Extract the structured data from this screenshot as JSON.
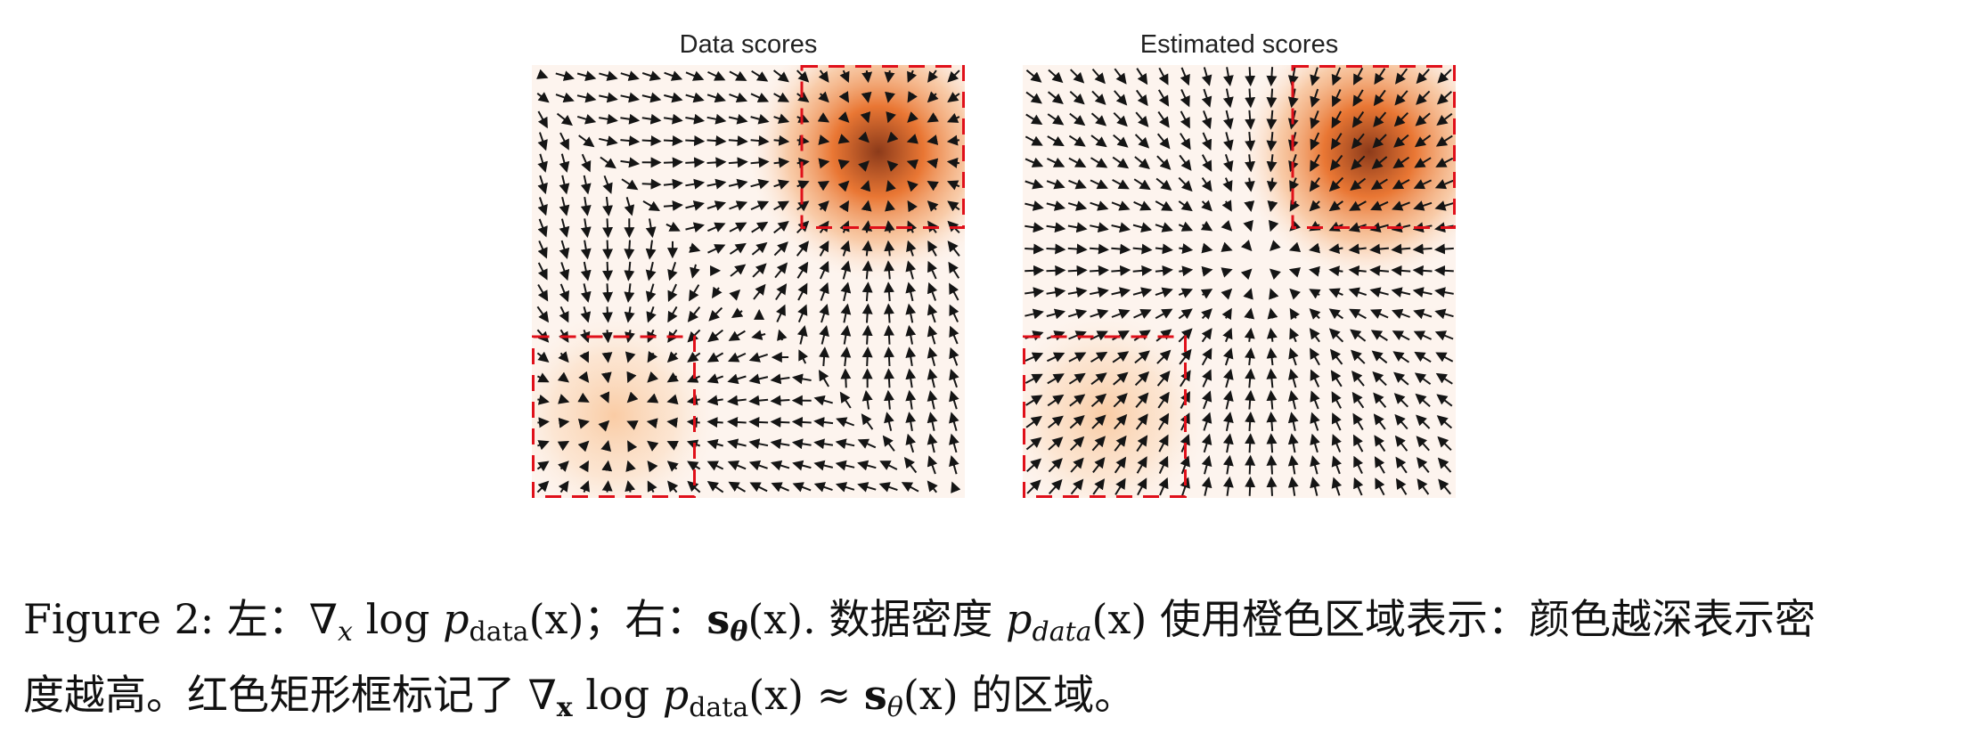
{
  "figure": {
    "panels": [
      {
        "title": "Data scores",
        "mode": "data"
      },
      {
        "title": "Estimated scores",
        "mode": "estimated"
      }
    ],
    "colors": {
      "density": "#e8702a",
      "density_dark": "#8b3a1a",
      "box": "#e0101a",
      "arrow": "#151515"
    }
  },
  "caption": {
    "line1_prefix": "Figure 2: 左：∇",
    "line1_sub_x": "x",
    "line1_log": " log ",
    "line1_p": "p",
    "line1_sub_data": "data",
    "line1_mid": "(x)；右：",
    "line1_s": "s",
    "line1_theta": "θ",
    "line1_rest1": "(x). 数据密度 ",
    "line1_p2": "p",
    "line1_sub_data2": "data",
    "line1_rest2": "(x) 使用橙色区域表示：颜色越深表示密",
    "line2_prefix": "度越高。红色矩形框标记了 ∇",
    "line2_sub_x": "x",
    "line2_log": " log ",
    "line2_p": "p",
    "line2_sub_data": "data",
    "line2_mid": "(x) ≈ ",
    "line2_s": "s",
    "line2_theta": "θ",
    "line2_rest": "(x) 的区域。"
  }
}
